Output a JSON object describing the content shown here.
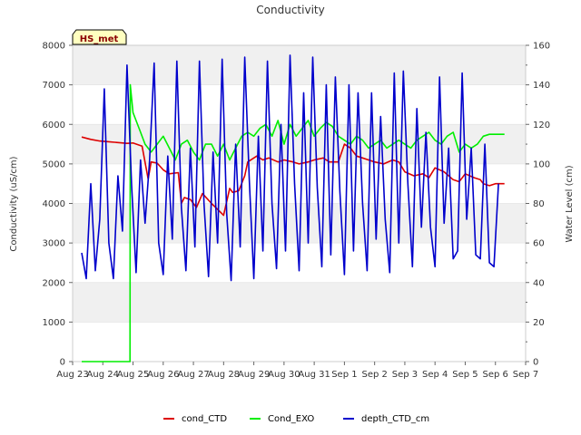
{
  "chart_data": {
    "type": "line",
    "title": "Conductivity",
    "site_label": "HS_met",
    "ylabel": "Conductivity (uS/cm)",
    "y2label": "Water Level (cm)",
    "ylim": [
      0,
      8000
    ],
    "y2lim": [
      0,
      160
    ],
    "yticks": [
      0,
      1000,
      2000,
      3000,
      4000,
      5000,
      6000,
      7000,
      8000
    ],
    "y2ticks": [
      0,
      20,
      40,
      60,
      80,
      100,
      120,
      140,
      160
    ],
    "xlim": [
      0,
      15
    ],
    "xticks": [
      0,
      1,
      2,
      3,
      4,
      5,
      6,
      7,
      8,
      9,
      10,
      11,
      12,
      13,
      14,
      15
    ],
    "xticklabels": [
      "Aug 23",
      "Aug 24",
      "Aug 25",
      "Aug 26",
      "Aug 27",
      "Aug 28",
      "Aug 29",
      "Aug 30",
      "Aug 31",
      "Sep 1",
      "Sep 2",
      "Sep 3",
      "Sep 4",
      "Sep 5",
      "Sep 6",
      "Sep 7"
    ],
    "grid_bands": true,
    "legend_position": "bottom-center",
    "series": [
      {
        "name": "cond_CTD",
        "color": "#dd0000",
        "axis": "left",
        "x": [
          0.3,
          0.6,
          0.9,
          1.2,
          1.5,
          1.8,
          2.0,
          2.3,
          2.5,
          2.6,
          2.8,
          3.0,
          3.2,
          3.5,
          3.6,
          3.7,
          3.9,
          4.1,
          4.3,
          4.6,
          4.8,
          5.0,
          5.2,
          5.3,
          5.5,
          5.7,
          5.8,
          6.0,
          6.1,
          6.3,
          6.5,
          6.8,
          7.0,
          7.3,
          7.5,
          7.8,
          8.0,
          8.3,
          8.5,
          8.8,
          9.0,
          9.2,
          9.4,
          9.6,
          9.8,
          10.0,
          10.3,
          10.6,
          10.8,
          11.0,
          11.3,
          11.6,
          11.8,
          12.0,
          12.3,
          12.6,
          12.8,
          13.0,
          13.3,
          13.5,
          13.6,
          13.8,
          14.0,
          14.3
        ],
        "y": [
          5680,
          5620,
          5580,
          5560,
          5540,
          5520,
          5530,
          5450,
          4620,
          5050,
          5020,
          4850,
          4750,
          4780,
          4000,
          4150,
          4100,
          3900,
          4250,
          4000,
          3850,
          3700,
          4380,
          4280,
          4320,
          4700,
          5050,
          5150,
          5200,
          5100,
          5150,
          5050,
          5100,
          5050,
          5000,
          5050,
          5100,
          5150,
          5050,
          5050,
          5500,
          5400,
          5200,
          5150,
          5100,
          5050,
          5000,
          5100,
          5050,
          4800,
          4700,
          4750,
          4650,
          4900,
          4800,
          4600,
          4550,
          4750,
          4650,
          4600,
          4500,
          4450,
          4500,
          4500
        ]
      },
      {
        "name": "Cond_EXO",
        "color": "#00ee00",
        "axis": "left",
        "x": [
          0.3,
          1.0,
          1.9,
          1.91,
          2.0,
          2.2,
          2.4,
          2.6,
          2.8,
          3.0,
          3.2,
          3.4,
          3.6,
          3.8,
          4.0,
          4.2,
          4.4,
          4.6,
          4.8,
          5.0,
          5.2,
          5.4,
          5.6,
          5.8,
          6.0,
          6.2,
          6.4,
          6.6,
          6.8,
          7.0,
          7.2,
          7.4,
          7.6,
          7.8,
          8.0,
          8.2,
          8.4,
          8.6,
          8.8,
          9.0,
          9.2,
          9.4,
          9.6,
          9.8,
          10.0,
          10.2,
          10.4,
          10.6,
          10.8,
          11.0,
          11.2,
          11.4,
          11.6,
          11.8,
          12.0,
          12.2,
          12.4,
          12.6,
          12.8,
          13.0,
          13.2,
          13.4,
          13.6,
          13.8,
          14.0,
          14.3
        ],
        "y": [
          0,
          0,
          0,
          7000,
          6300,
          5900,
          5500,
          5300,
          5500,
          5700,
          5400,
          5100,
          5500,
          5600,
          5300,
          5100,
          5500,
          5500,
          5200,
          5500,
          5100,
          5400,
          5700,
          5800,
          5700,
          5900,
          6000,
          5700,
          6100,
          5500,
          6000,
          5700,
          5900,
          6100,
          5700,
          5900,
          6050,
          5950,
          5700,
          5600,
          5500,
          5700,
          5600,
          5400,
          5500,
          5600,
          5400,
          5500,
          5600,
          5500,
          5400,
          5600,
          5700,
          5800,
          5600,
          5500,
          5700,
          5800,
          5300,
          5500,
          5400,
          5500,
          5700,
          5750,
          5750,
          5750
        ]
      },
      {
        "name": "depth_CTD_cm",
        "color": "#0000cc",
        "axis": "right",
        "x": [
          0.3,
          0.45,
          0.6,
          0.75,
          0.9,
          1.05,
          1.2,
          1.35,
          1.5,
          1.65,
          1.8,
          1.95,
          2.1,
          2.25,
          2.4,
          2.55,
          2.7,
          2.85,
          3.0,
          3.15,
          3.3,
          3.45,
          3.6,
          3.75,
          3.9,
          4.05,
          4.2,
          4.35,
          4.5,
          4.65,
          4.8,
          4.95,
          5.1,
          5.25,
          5.4,
          5.55,
          5.7,
          5.85,
          6.0,
          6.15,
          6.3,
          6.45,
          6.6,
          6.75,
          6.9,
          7.05,
          7.2,
          7.35,
          7.5,
          7.65,
          7.8,
          7.95,
          8.1,
          8.25,
          8.4,
          8.55,
          8.7,
          8.85,
          9.0,
          9.15,
          9.3,
          9.45,
          9.6,
          9.75,
          9.9,
          10.05,
          10.2,
          10.35,
          10.5,
          10.65,
          10.8,
          10.95,
          11.1,
          11.25,
          11.4,
          11.55,
          11.7,
          11.85,
          12.0,
          12.15,
          12.3,
          12.45,
          12.6,
          12.75,
          12.9,
          13.05,
          13.2,
          13.35,
          13.5,
          13.65,
          13.8,
          13.95,
          14.1
        ],
        "y": [
          55,
          42,
          90,
          46,
          72,
          138,
          60,
          42,
          94,
          66,
          150,
          90,
          45,
          102,
          70,
          102,
          151,
          60,
          44,
          104,
          62,
          152,
          78,
          46,
          108,
          58,
          152,
          80,
          43,
          106,
          60,
          153,
          75,
          41,
          110,
          58,
          154,
          92,
          42,
          114,
          56,
          152,
          80,
          47,
          120,
          56,
          155,
          90,
          46,
          136,
          60,
          154,
          88,
          48,
          140,
          54,
          144,
          86,
          44,
          140,
          56,
          136,
          80,
          46,
          136,
          62,
          124,
          72,
          45,
          146,
          60,
          147,
          90,
          48,
          128,
          68,
          116,
          68,
          48,
          144,
          70,
          108,
          52,
          56,
          146,
          72,
          108,
          54,
          52,
          110,
          50,
          48,
          90
        ]
      }
    ]
  }
}
